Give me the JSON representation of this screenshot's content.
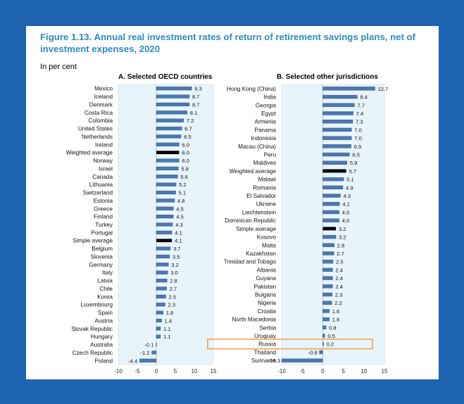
{
  "figure": {
    "title": "Figure 1.13. Annual real investment rates of return of retirement savings plans, net of investment expenses, 2020",
    "unit": "In per cent"
  },
  "colors": {
    "bar": "#4a78b0",
    "highlight_bar": "#000000",
    "plot_bg": "#e8f4fb",
    "callout_border": "#f0a050",
    "frame": "#1f64b0"
  },
  "chart_data": [
    {
      "type": "bar",
      "orientation": "horizontal",
      "title": "A. Selected OECD countries",
      "xlim": [
        -10,
        15
      ],
      "xticks": [
        -10,
        -5,
        0,
        5,
        10,
        15
      ],
      "categories": [
        "Mexico",
        "Iceland",
        "Denmark",
        "Costa Rica",
        "Colombia",
        "United States",
        "Netherlands",
        "Ireland",
        "Weighted average",
        "Norway",
        "Israel",
        "Canada",
        "Lithuania",
        "Switzerland",
        "Estonia",
        "Greece",
        "Finland",
        "Turkey",
        "Portugal",
        "Simple average",
        "Belgium",
        "Slovenia",
        "Germany",
        "Italy",
        "Latvia",
        "Chile",
        "Korea",
        "Luxembourg",
        "Spain",
        "Austria",
        "Slovak Republic",
        "Hungary",
        "Australia",
        "Czech Republic",
        "Poland"
      ],
      "values": [
        9.3,
        8.7,
        8.7,
        8.1,
        7.2,
        6.7,
        6.5,
        6.0,
        6.0,
        6.0,
        5.8,
        5.6,
        5.2,
        5.1,
        4.8,
        4.5,
        4.5,
        4.3,
        4.1,
        4.1,
        3.7,
        3.5,
        3.2,
        3.0,
        2.8,
        2.7,
        2.5,
        2.3,
        1.8,
        1.4,
        1.1,
        1.1,
        -0.1,
        -1.2,
        -4.4
      ],
      "value_labels": [
        "9.3",
        "8.7",
        "8.7",
        "8.1",
        "7.2",
        "6.7",
        "6.5",
        "6.0",
        "6.0",
        "6.0",
        "5.8",
        "5.6",
        "5.2",
        "5.1",
        "4.8",
        "4.5",
        "4.5",
        "4.3",
        "4.1",
        "4.1",
        "3.7",
        "3.5",
        "3.2",
        "3.0",
        "2.8",
        "2.7",
        "2.5",
        "2.3",
        "1.8",
        "1.4",
        "1.1",
        "1.1",
        "-0.1",
        "-1.2",
        "-4.4"
      ],
      "highlight": [
        "Weighted average",
        "Simple average"
      ]
    },
    {
      "type": "bar",
      "orientation": "horizontal",
      "title": "B. Selected other jurisdictions",
      "xlim": [
        -10,
        15
      ],
      "xticks": [
        -10,
        -5,
        0,
        5,
        10,
        15
      ],
      "categories": [
        "Hong Kong (China)",
        "India",
        "Georgia",
        "Egypt",
        "Armenia",
        "Panama",
        "Indonesia",
        "Macau (China)",
        "Peru",
        "Maldives",
        "Weighted average",
        "Malawi",
        "Romania",
        "El Salvador",
        "Ukraine",
        "Liechtenstein",
        "Dominican Republic",
        "Simple average",
        "Kosovo",
        "Malta",
        "Kazakhstan",
        "Trinidad and Tobago",
        "Albania",
        "Guyana",
        "Pakistan",
        "Bulgaria",
        "Nigeria",
        "Croatia",
        "North Macedonia",
        "Serbia",
        "Uruguay",
        "Russia",
        "Thailand",
        "Suriname"
      ],
      "values": [
        12.7,
        8.4,
        7.7,
        7.4,
        7.3,
        7.0,
        7.0,
        6.9,
        6.5,
        5.9,
        5.7,
        5.1,
        4.9,
        4.3,
        4.1,
        4.0,
        4.0,
        3.2,
        3.2,
        2.8,
        2.7,
        2.5,
        2.4,
        2.4,
        2.4,
        2.3,
        2.2,
        1.6,
        1.6,
        0.8,
        0.5,
        0.2,
        -0.8,
        -26.3
      ],
      "value_labels": [
        "12.7",
        "8.4",
        "7.7",
        "7.4",
        "7.3",
        "7.0",
        "7.0",
        "6.9",
        "6.5",
        "5.9",
        "5.7",
        "5.1",
        "4.9",
        "4.3",
        "4.1",
        "4.0",
        "4.0",
        "3.2",
        "3.2",
        "2.8",
        "2.7",
        "2.5",
        "2.4",
        "2.4",
        "2.4",
        "2.3",
        "2.2",
        "1.6",
        "1.6",
        "0.8",
        "0.5",
        "0.2",
        "-0.8",
        "-26.3"
      ],
      "highlight": [
        "Weighted average",
        "Simple average"
      ],
      "callout": "Russia"
    }
  ]
}
